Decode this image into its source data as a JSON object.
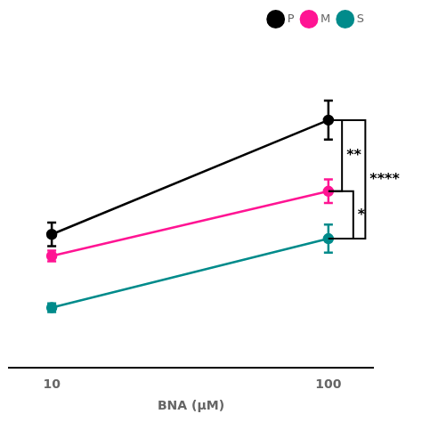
{
  "chart_data": {
    "type": "line",
    "x_label": "BNA (μM)",
    "x": [
      10,
      100
    ],
    "series": [
      {
        "name": "P",
        "color": "#000000",
        "values": [
          4.2,
          9.5
        ],
        "errors": [
          0.55,
          0.9
        ],
        "marker": "circle"
      },
      {
        "name": "M",
        "color": "#FF1493",
        "values": [
          3.2,
          6.2
        ],
        "errors": [
          0.25,
          0.55
        ],
        "marker": "circle"
      },
      {
        "name": "S",
        "color": "#008B8B",
        "values": [
          0.8,
          4.0
        ],
        "errors": [
          0.2,
          0.65
        ],
        "marker": "circle"
      }
    ],
    "log": "x",
    "xlim": [
      7,
      145
    ],
    "xticks": [
      10,
      100
    ],
    "ylim": [
      -2.0,
      13.5
    ],
    "tick_labels": "x",
    "grid": false,
    "legend": "upper right",
    "annotations": [
      {
        "text": "**",
        "series": [
          "P",
          "M"
        ]
      },
      {
        "text": "*",
        "series": [
          "M",
          "S"
        ]
      },
      {
        "text": "****",
        "series": [
          "P",
          "S"
        ]
      }
    ]
  }
}
